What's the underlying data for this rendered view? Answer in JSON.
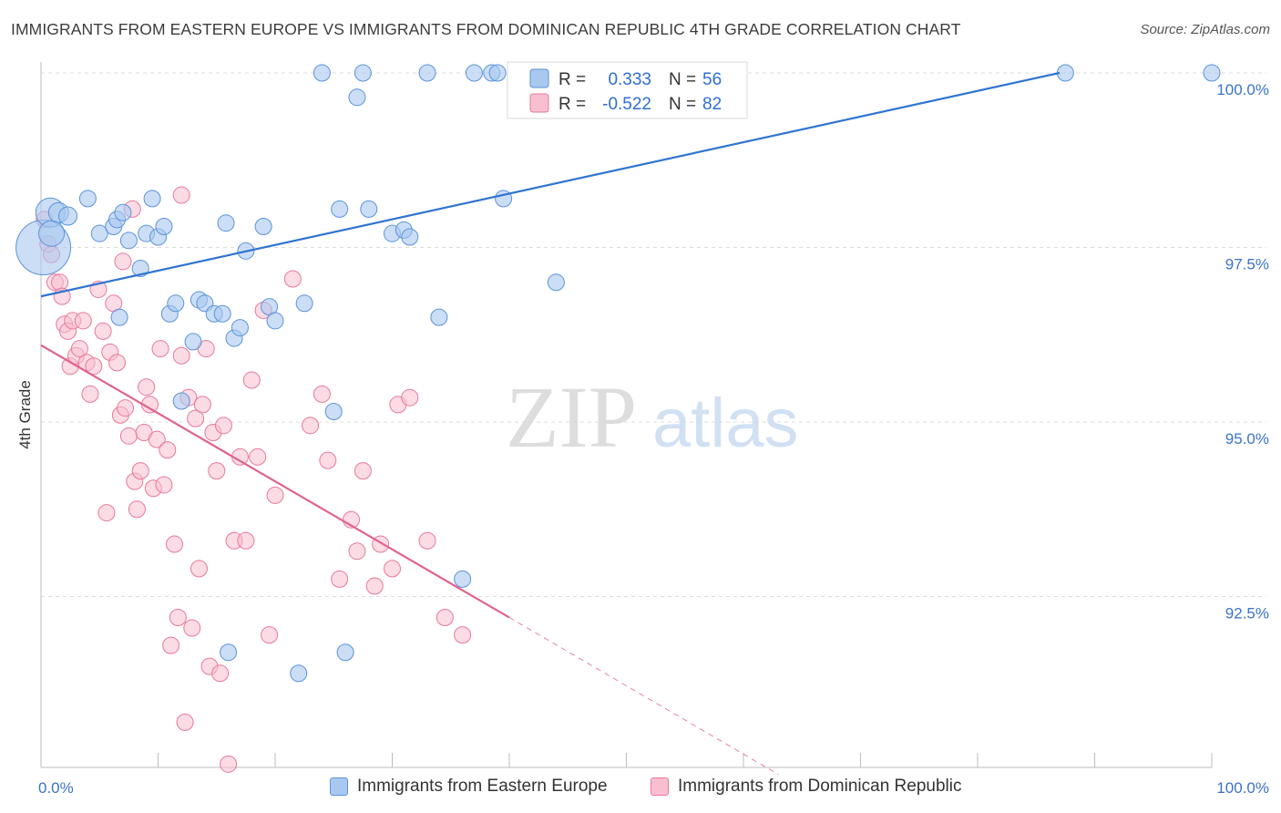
{
  "title": "IMMIGRANTS FROM EASTERN EUROPE VS IMMIGRANTS FROM DOMINICAN REPUBLIC 4TH GRADE CORRELATION CHART",
  "source": "Source: ZipAtlas.com",
  "watermark": {
    "zip": "ZIP",
    "atlas": "atlas"
  },
  "colors": {
    "blue_fill": "#a9c8f0",
    "blue_stroke": "#5b93d9",
    "blue_line": "#2f74d0",
    "pink_fill": "#f7bfd0",
    "pink_stroke": "#e8789c",
    "pink_line": "#e0628e",
    "tick_label": "#3b73c8",
    "grid": "#dcdcdc"
  },
  "legend": {
    "rows": [
      {
        "r_label": "R =",
        "r_value": "0.333",
        "n_label": "N =",
        "n_value": "56"
      },
      {
        "r_label": "R =",
        "r_value": "-0.522",
        "n_label": "N =",
        "n_value": "82"
      }
    ]
  },
  "bottom_legend": [
    {
      "label": "Immigrants from Eastern Europe"
    },
    {
      "label": "Immigrants from Dominican Republic"
    }
  ],
  "chart_data": {
    "type": "scatter",
    "title": "IMMIGRANTS FROM EASTERN EUROPE VS IMMIGRANTS FROM DOMINICAN REPUBLIC 4TH GRADE CORRELATION CHART",
    "xlabel": "",
    "ylabel": "4th Grade",
    "xlim": [
      0,
      100
    ],
    "ylim": [
      90.0,
      100.25
    ],
    "x_tick_labels": [
      {
        "value": 0,
        "label": "0.0%"
      },
      {
        "value": 100,
        "label": "100.0%"
      }
    ],
    "y_tick_labels": [
      {
        "value": 92.5,
        "label": "92.5%"
      },
      {
        "value": 95.0,
        "label": "95.0%"
      },
      {
        "value": 97.5,
        "label": "97.5%"
      },
      {
        "value": 100.0,
        "label": "100.0%"
      }
    ],
    "grid": true,
    "legend_position": "top-center",
    "series": [
      {
        "name": "Immigrants from Eastern Europe",
        "R": 0.333,
        "N": 56,
        "trend": [
          [
            0,
            96.8
          ],
          [
            87,
            100.0
          ]
        ],
        "points": [
          [
            0.2,
            97.5,
            30
          ],
          [
            0.8,
            98.0,
            16
          ],
          [
            0.9,
            97.7,
            14
          ],
          [
            1.5,
            98.0,
            11
          ],
          [
            2.3,
            97.95,
            10
          ],
          [
            4.0,
            98.2,
            9
          ],
          [
            5.0,
            97.7,
            9
          ],
          [
            6.2,
            97.8,
            9
          ],
          [
            6.5,
            97.9,
            9
          ],
          [
            6.7,
            96.5,
            9
          ],
          [
            7.0,
            98.0,
            9
          ],
          [
            7.5,
            97.6,
            9
          ],
          [
            8.5,
            97.2,
            9
          ],
          [
            9.0,
            97.7,
            9
          ],
          [
            9.5,
            98.2,
            9
          ],
          [
            10.0,
            97.65,
            9
          ],
          [
            10.5,
            97.8,
            9
          ],
          [
            11.0,
            96.55,
            9
          ],
          [
            11.5,
            96.7,
            9
          ],
          [
            12.0,
            95.3,
            9
          ],
          [
            13.0,
            96.15,
            9
          ],
          [
            13.5,
            96.75,
            9
          ],
          [
            14.0,
            96.7,
            9
          ],
          [
            14.8,
            96.55,
            9
          ],
          [
            15.5,
            96.55,
            9
          ],
          [
            15.8,
            97.85,
            9
          ],
          [
            16.0,
            91.7,
            9
          ],
          [
            16.5,
            96.2,
            9
          ],
          [
            17.0,
            96.35,
            9
          ],
          [
            17.5,
            97.45,
            9
          ],
          [
            19.0,
            97.8,
            9
          ],
          [
            19.5,
            96.65,
            9
          ],
          [
            20.0,
            96.45,
            9
          ],
          [
            22.0,
            91.4,
            9
          ],
          [
            22.5,
            96.7,
            9
          ],
          [
            24.0,
            100.0,
            9
          ],
          [
            25.0,
            95.15,
            9
          ],
          [
            25.5,
            98.05,
            9
          ],
          [
            26.0,
            91.7,
            9
          ],
          [
            27.0,
            99.65,
            9
          ],
          [
            27.5,
            100.0,
            9
          ],
          [
            28.0,
            98.05,
            9
          ],
          [
            30.0,
            97.7,
            9
          ],
          [
            31.0,
            97.75,
            9
          ],
          [
            31.5,
            97.65,
            9
          ],
          [
            33.0,
            100.0,
            9
          ],
          [
            34.0,
            96.5,
            9
          ],
          [
            36.0,
            92.75,
            9
          ],
          [
            37.0,
            100.0,
            9
          ],
          [
            38.5,
            100.0,
            9
          ],
          [
            39.0,
            100.0,
            9
          ],
          [
            39.5,
            98.2,
            9
          ],
          [
            42.0,
            100.0,
            9
          ],
          [
            43.0,
            100.0,
            9
          ],
          [
            44.0,
            97.0,
            9
          ],
          [
            87.5,
            100.0,
            9
          ],
          [
            100.0,
            100.0,
            9
          ]
        ]
      },
      {
        "name": "Immigrants from Dominican Republic",
        "R": -0.522,
        "N": 82,
        "trend": [
          [
            0,
            96.1
          ],
          [
            40,
            92.2
          ]
        ],
        "trend_extension": [
          [
            40,
            92.2
          ],
          [
            63,
            89.95
          ]
        ],
        "points": [
          [
            0.3,
            97.9,
            9
          ],
          [
            0.6,
            97.55,
            9
          ],
          [
            0.9,
            97.4,
            9
          ],
          [
            1.2,
            97.0,
            9
          ],
          [
            1.6,
            97.0,
            9
          ],
          [
            1.8,
            96.8,
            9
          ],
          [
            2.0,
            96.4,
            9
          ],
          [
            2.3,
            96.3,
            9
          ],
          [
            2.5,
            95.8,
            9
          ],
          [
            2.7,
            96.45,
            9
          ],
          [
            3.0,
            95.95,
            9
          ],
          [
            3.3,
            96.05,
            9
          ],
          [
            3.6,
            96.45,
            9
          ],
          [
            3.9,
            95.85,
            9
          ],
          [
            4.2,
            95.4,
            9
          ],
          [
            4.5,
            95.8,
            9
          ],
          [
            4.9,
            96.9,
            9
          ],
          [
            5.3,
            96.3,
            9
          ],
          [
            5.6,
            93.7,
            9
          ],
          [
            5.9,
            96.0,
            9
          ],
          [
            6.2,
            96.7,
            9
          ],
          [
            6.5,
            95.85,
            9
          ],
          [
            6.8,
            95.1,
            9
          ],
          [
            7.0,
            97.3,
            9
          ],
          [
            7.2,
            95.2,
            9
          ],
          [
            7.5,
            94.8,
            9
          ],
          [
            7.8,
            98.05,
            9
          ],
          [
            8.0,
            94.15,
            9
          ],
          [
            8.2,
            93.75,
            9
          ],
          [
            8.5,
            94.3,
            9
          ],
          [
            8.8,
            94.85,
            9
          ],
          [
            9.0,
            95.5,
            9
          ],
          [
            9.3,
            95.25,
            9
          ],
          [
            9.6,
            94.05,
            9
          ],
          [
            9.9,
            94.75,
            9
          ],
          [
            10.2,
            96.05,
            9
          ],
          [
            10.5,
            94.1,
            9
          ],
          [
            10.8,
            94.6,
            9
          ],
          [
            11.1,
            91.8,
            9
          ],
          [
            11.4,
            93.25,
            9
          ],
          [
            11.7,
            92.2,
            9
          ],
          [
            12.0,
            95.95,
            9
          ],
          [
            12.0,
            98.25,
            9
          ],
          [
            12.3,
            90.7,
            9
          ],
          [
            12.6,
            95.35,
            9
          ],
          [
            12.9,
            92.05,
            9
          ],
          [
            13.2,
            95.05,
            9
          ],
          [
            13.5,
            92.9,
            9
          ],
          [
            13.8,
            95.25,
            9
          ],
          [
            14.1,
            96.05,
            9
          ],
          [
            14.4,
            91.5,
            9
          ],
          [
            14.7,
            94.85,
            9
          ],
          [
            15.0,
            94.3,
            9
          ],
          [
            15.3,
            91.4,
            9
          ],
          [
            15.6,
            94.95,
            9
          ],
          [
            16.0,
            90.1,
            9
          ],
          [
            16.5,
            93.3,
            9
          ],
          [
            17.0,
            94.5,
            9
          ],
          [
            17.5,
            93.3,
            9
          ],
          [
            18.0,
            95.6,
            9
          ],
          [
            18.5,
            94.5,
            9
          ],
          [
            19.0,
            96.6,
            9
          ],
          [
            19.5,
            91.95,
            9
          ],
          [
            20.0,
            93.95,
            9
          ],
          [
            21.5,
            97.05,
            9
          ],
          [
            23.0,
            94.95,
            9
          ],
          [
            24.0,
            95.4,
            9
          ],
          [
            24.5,
            94.45,
            9
          ],
          [
            25.5,
            92.75,
            9
          ],
          [
            26.5,
            93.6,
            9
          ],
          [
            27.0,
            93.15,
            9
          ],
          [
            27.5,
            94.3,
            9
          ],
          [
            28.5,
            92.65,
            9
          ],
          [
            29.0,
            93.25,
            9
          ],
          [
            30.0,
            92.9,
            9
          ],
          [
            30.5,
            95.25,
            9
          ],
          [
            31.5,
            95.35,
            9
          ],
          [
            33.0,
            93.3,
            9
          ],
          [
            34.5,
            92.2,
            9
          ],
          [
            36.0,
            91.95,
            9
          ]
        ]
      }
    ]
  }
}
